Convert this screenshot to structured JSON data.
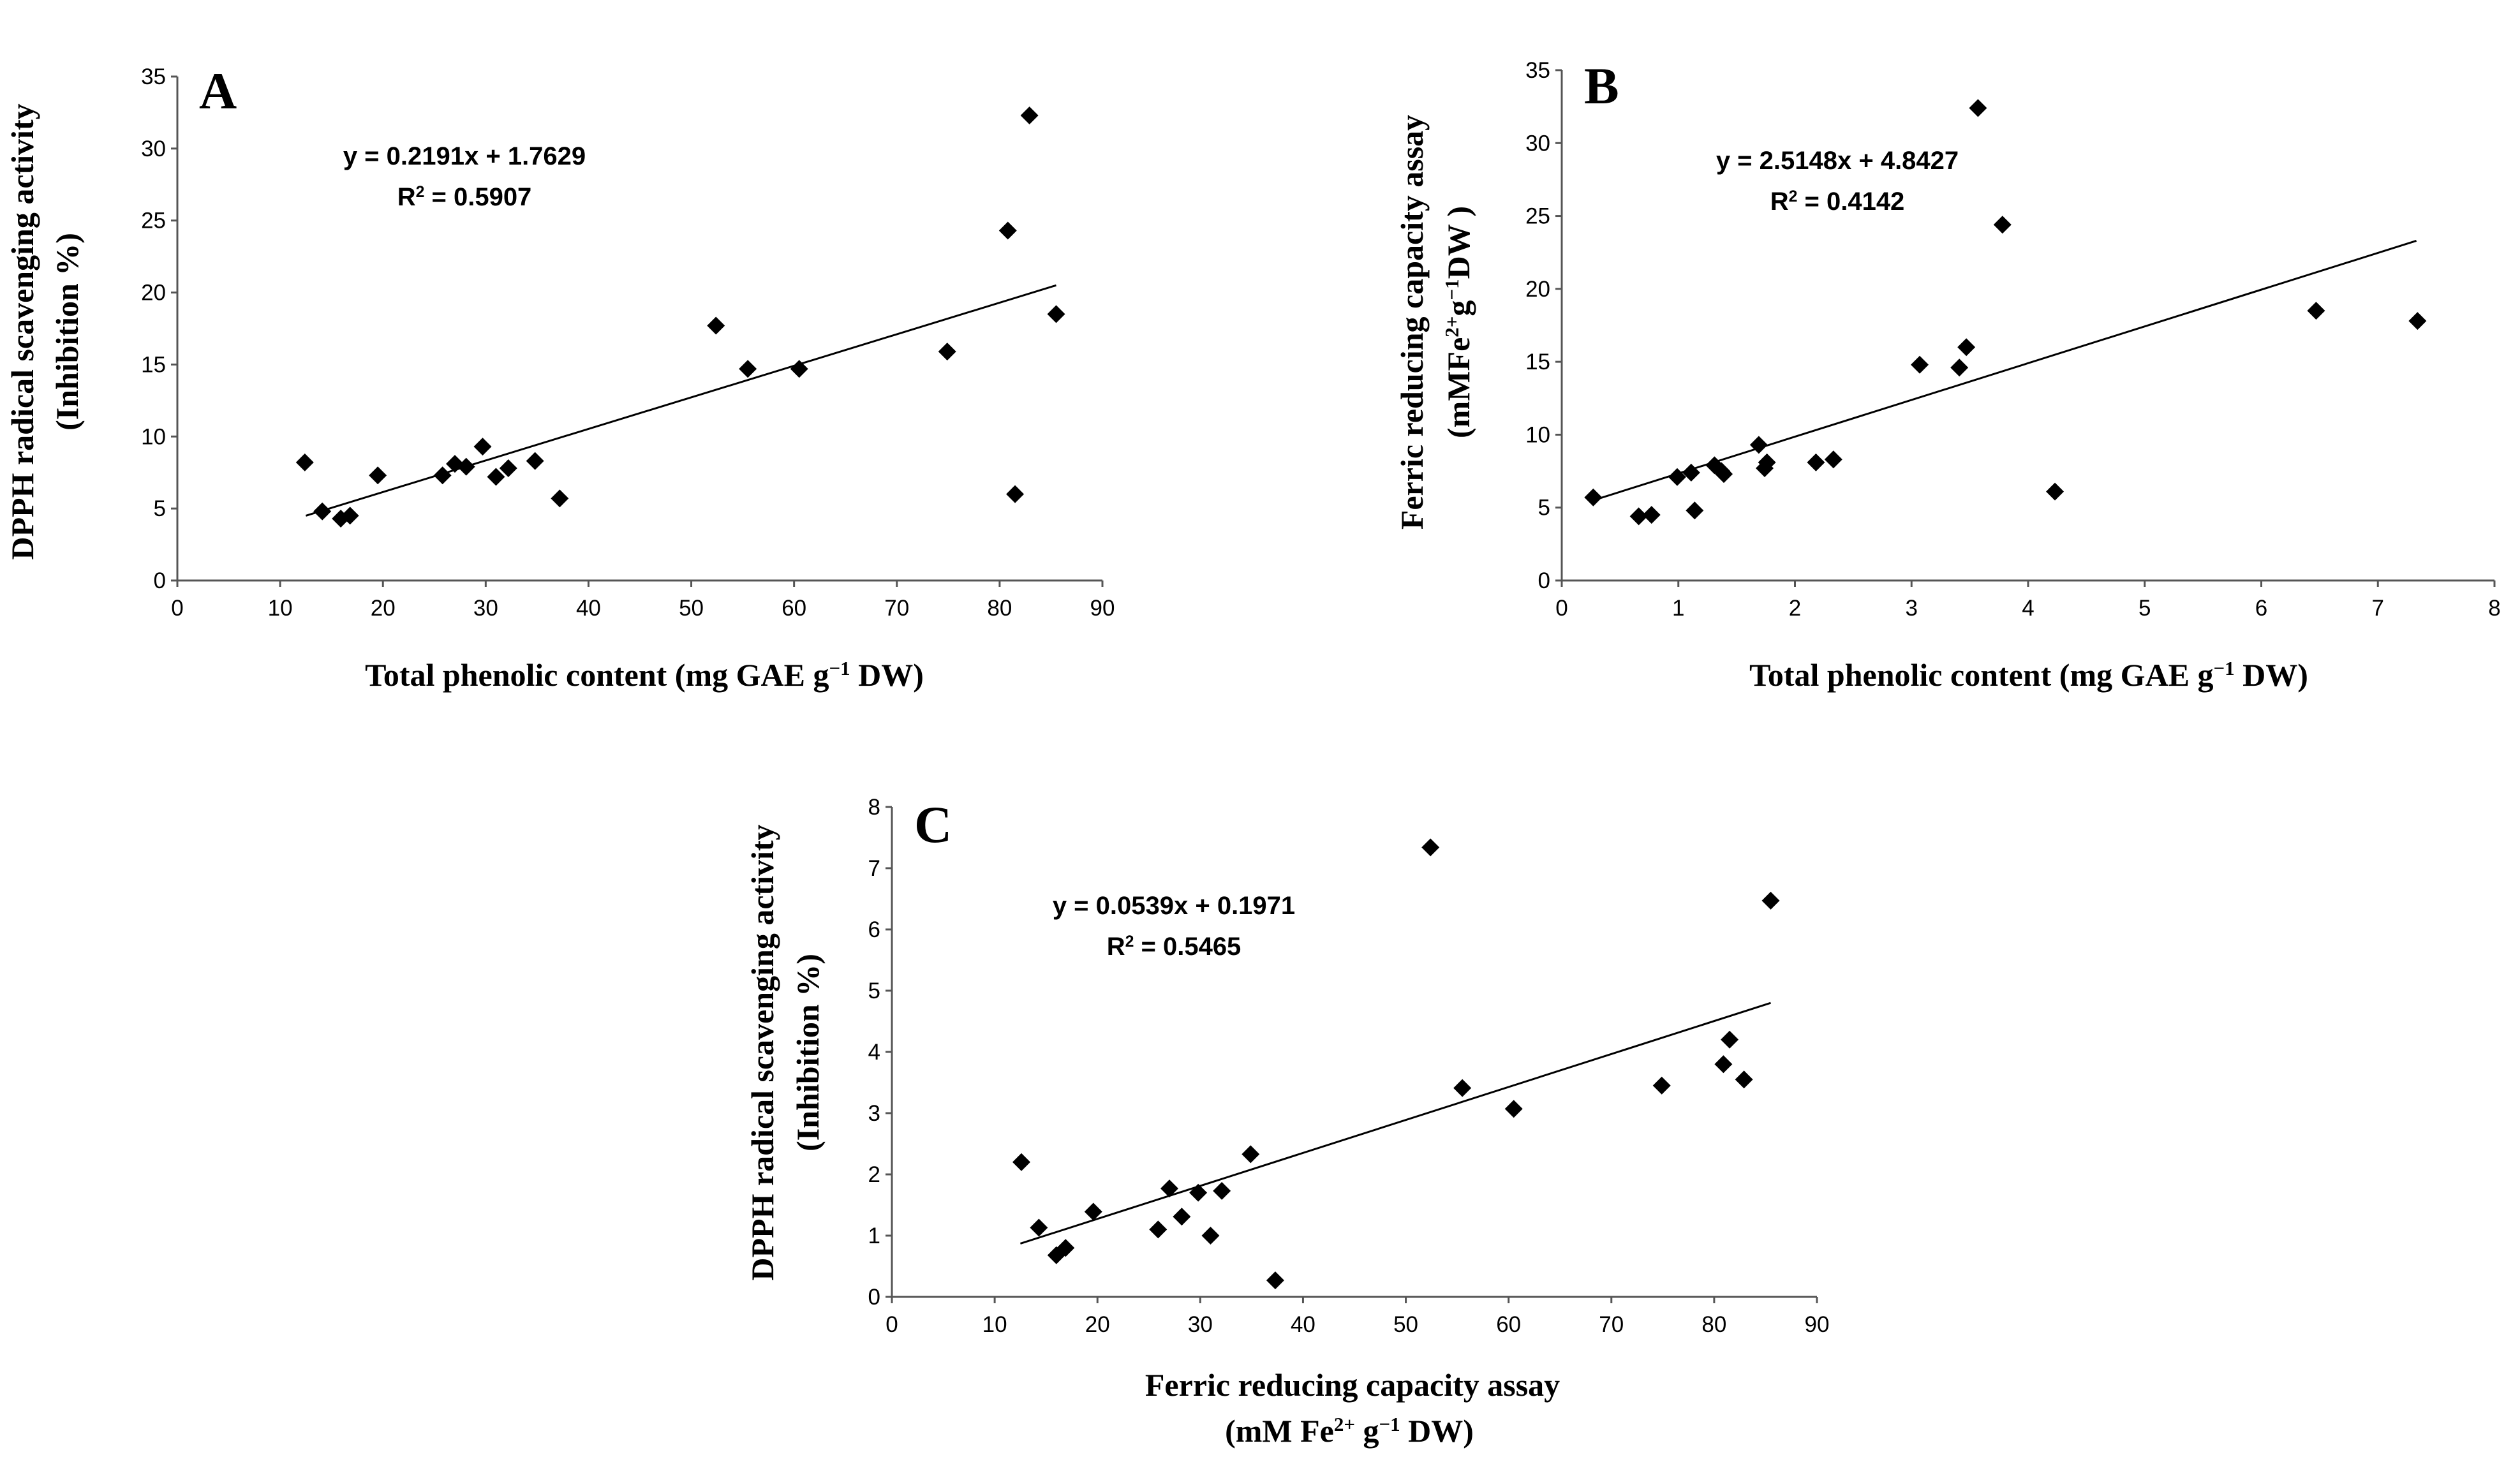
{
  "chart_data": [
    {
      "panel": "A",
      "type": "scatter",
      "xlabel": "Total phenolic content (mg GAE g<sup>−1</sup> DW)",
      "ylabel": [
        "DPPH radical scavenging activity",
        "(Inhibition %)"
      ],
      "xlim": [
        0,
        90
      ],
      "ylim": [
        0,
        35
      ],
      "xticks": [
        "0",
        "10",
        "20",
        "30",
        "40",
        "50",
        "60",
        "70",
        "80",
        "90"
      ],
      "yticks": [
        "0",
        "5",
        "10",
        "15",
        "20",
        "25",
        "30",
        "35"
      ],
      "equation": "y = 0.2191x + 1.7629",
      "r2": "R<sup>2</sup> = 0.5907",
      "trendline": {
        "x": [
          12.5,
          85.5
        ],
        "y": [
          4.5,
          20.5
        ]
      },
      "x": [
        12.4,
        14.1,
        15.9,
        16.8,
        19.5,
        25.8,
        27.0,
        28.1,
        29.7,
        31.0,
        32.2,
        34.8,
        37.2,
        52.4,
        55.5,
        60.5,
        74.9,
        80.8,
        81.5,
        82.9,
        85.5
      ],
      "y": [
        8.2,
        4.8,
        4.3,
        4.5,
        7.3,
        7.3,
        8.1,
        7.9,
        9.3,
        7.2,
        7.8,
        8.3,
        5.7,
        17.7,
        14.7,
        14.7,
        15.9,
        24.3,
        6.0,
        32.3,
        18.5
      ]
    },
    {
      "panel": "B",
      "type": "scatter",
      "xlabel": "Total phenolic content (mg GAE g<sup>−1</sup> DW)",
      "ylabel": [
        "Ferric reducing capacity assay",
        "(mMFe<sup>2+</sup>g<sup>−1</sup>DW )"
      ],
      "xlim": [
        0,
        8
      ],
      "ylim": [
        0,
        35
      ],
      "xticks": [
        "0",
        "1",
        "2",
        "3",
        "4",
        "5",
        "6",
        "7",
        "8"
      ],
      "yticks": [
        "0",
        "5",
        "10",
        "15",
        "20",
        "25",
        "30",
        "35"
      ],
      "equation": "y = 2.5148x + 4.8427",
      "r2": "R<sup>2</sup> = 0.4142",
      "trendline": {
        "x": [
          0.27,
          7.33
        ],
        "y": [
          5.5,
          23.3
        ]
      },
      "x": [
        0.27,
        0.66,
        0.77,
        0.99,
        1.11,
        1.14,
        1.31,
        1.37,
        1.39,
        1.69,
        1.74,
        1.76,
        2.18,
        2.33,
        3.07,
        3.41,
        3.47,
        3.57,
        3.78,
        4.23,
        6.47,
        7.34
      ],
      "y": [
        5.7,
        4.4,
        4.5,
        7.1,
        7.4,
        4.8,
        7.9,
        7.5,
        7.3,
        9.3,
        7.7,
        8.1,
        8.1,
        8.3,
        14.8,
        14.6,
        16.0,
        32.4,
        24.4,
        6.1,
        18.5,
        17.8
      ]
    },
    {
      "panel": "C",
      "type": "scatter",
      "xlabel": [
        "Ferric reducing capacity assay",
        "(mM Fe<sup>2+</sup> g<sup>−1</sup> DW)"
      ],
      "ylabel": [
        "DPPH radical scavenging activity",
        "(Inhibition %)"
      ],
      "xlim": [
        0,
        90
      ],
      "ylim": [
        0,
        8
      ],
      "xticks": [
        "0",
        "10",
        "20",
        "30",
        "40",
        "50",
        "60",
        "70",
        "80",
        "90"
      ],
      "yticks": [
        "0",
        "1",
        "2",
        "3",
        "4",
        "5",
        "6",
        "7",
        "8"
      ],
      "equation": "y = 0.0539x + 0.1971",
      "r2": "R<sup>2</sup> = 0.5465",
      "trendline": {
        "x": [
          12.5,
          85.5
        ],
        "y": [
          0.87,
          4.8
        ]
      },
      "x": [
        12.6,
        14.3,
        16.0,
        16.9,
        19.6,
        25.9,
        27.0,
        28.2,
        29.8,
        31.0,
        32.1,
        34.9,
        37.3,
        52.4,
        55.5,
        60.5,
        74.9,
        80.9,
        81.5,
        82.9,
        85.5
      ],
      "y": [
        2.2,
        1.13,
        0.68,
        0.8,
        1.39,
        1.1,
        1.77,
        1.31,
        1.7,
        1.0,
        1.73,
        2.33,
        0.27,
        7.34,
        3.41,
        3.07,
        3.45,
        3.8,
        4.2,
        3.55,
        6.47
      ]
    }
  ]
}
